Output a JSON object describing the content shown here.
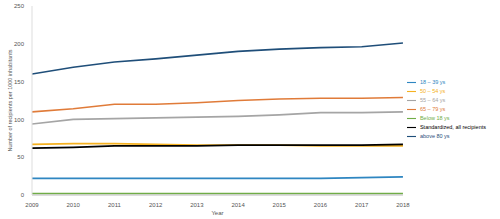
{
  "chart_data": {
    "type": "line",
    "x_label": "Year",
    "y_label": "Number of recipients per 1000 inhabitants",
    "x": [
      2009,
      2010,
      2011,
      2012,
      2013,
      2014,
      2015,
      2016,
      2017,
      2018
    ],
    "xlim": [
      2009,
      2018
    ],
    "xticks": [
      2009,
      2010,
      2011,
      2012,
      2013,
      2014,
      2015,
      2016,
      2017,
      2018
    ],
    "ylim": [
      0,
      250
    ],
    "yticks": [
      0,
      50,
      100,
      150,
      200,
      250
    ],
    "grid": false,
    "legend": "right",
    "series": [
      {
        "name": "above 80 ys",
        "color": "#1f4e79",
        "values": [
          160,
          169,
          176,
          180,
          185,
          190,
          193,
          195,
          196,
          201
        ]
      },
      {
        "name": "65 – 79 ys",
        "color": "#e07b39",
        "values": [
          110,
          114,
          120,
          120,
          122,
          125,
          127,
          128,
          128,
          129
        ]
      },
      {
        "name": "55 – 64 ys",
        "color": "#a5a5a5",
        "values": [
          94,
          100,
          101,
          102,
          103,
          104,
          106,
          109,
          109,
          110
        ]
      },
      {
        "name": "50 – 54 ys",
        "color": "#f5b120",
        "values": [
          67,
          68,
          68,
          67,
          66,
          66,
          66,
          65,
          65,
          65
        ]
      },
      {
        "name": "18 – 39 ys",
        "color": "#2e86c1",
        "values": [
          22,
          22,
          22,
          22,
          22,
          22,
          22,
          22,
          23,
          24
        ]
      },
      {
        "name": "Below 18 ys",
        "color": "#70ad47",
        "values": [
          2,
          2,
          2,
          2,
          2,
          2,
          2,
          2,
          2,
          2
        ]
      },
      {
        "name": "Standardized, all recipients",
        "color": "#000000",
        "values": [
          62,
          63,
          65,
          65,
          65,
          66,
          66,
          66,
          66,
          67
        ]
      }
    ]
  }
}
